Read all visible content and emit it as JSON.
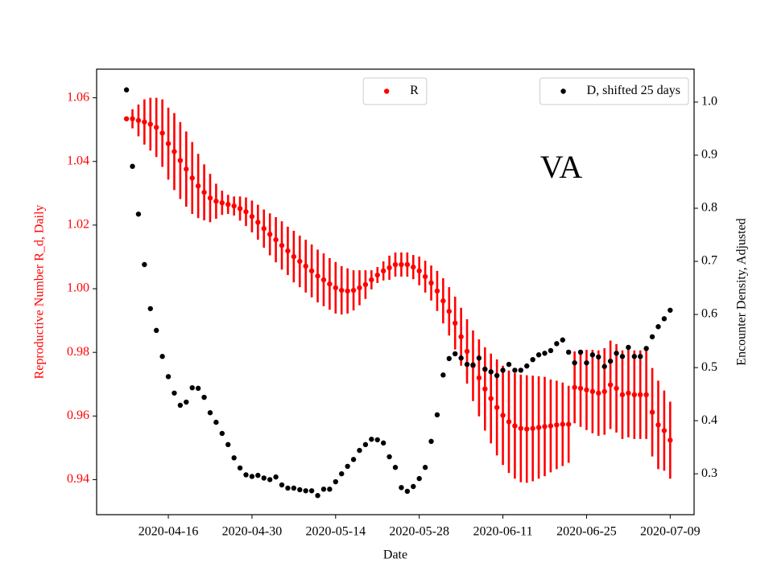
{
  "chart_data": {
    "type": "scatter",
    "annotation": "VA",
    "xlabel": "Date",
    "ylabel": "Reproductive Number R_d, Daily",
    "y2label": "Encounter Density, Adjusted",
    "x": [
      "2020-04-09",
      "2020-04-10",
      "2020-04-11",
      "2020-04-12",
      "2020-04-13",
      "2020-04-14",
      "2020-04-15",
      "2020-04-16",
      "2020-04-17",
      "2020-04-18",
      "2020-04-19",
      "2020-04-20",
      "2020-04-21",
      "2020-04-22",
      "2020-04-23",
      "2020-04-24",
      "2020-04-25",
      "2020-04-26",
      "2020-04-27",
      "2020-04-28",
      "2020-04-29",
      "2020-04-30",
      "2020-05-01",
      "2020-05-02",
      "2020-05-03",
      "2020-05-04",
      "2020-05-05",
      "2020-05-06",
      "2020-05-07",
      "2020-05-08",
      "2020-05-09",
      "2020-05-10",
      "2020-05-11",
      "2020-05-12",
      "2020-05-13",
      "2020-05-14",
      "2020-05-15",
      "2020-05-16",
      "2020-05-17",
      "2020-05-18",
      "2020-05-19",
      "2020-05-20",
      "2020-05-21",
      "2020-05-22",
      "2020-05-23",
      "2020-05-24",
      "2020-05-25",
      "2020-05-26",
      "2020-05-27",
      "2020-05-28",
      "2020-05-29",
      "2020-05-30",
      "2020-05-31",
      "2020-06-01",
      "2020-06-02",
      "2020-06-03",
      "2020-06-04",
      "2020-06-05",
      "2020-06-06",
      "2020-06-07",
      "2020-06-08",
      "2020-06-09",
      "2020-06-10",
      "2020-06-11",
      "2020-06-12",
      "2020-06-13",
      "2020-06-14",
      "2020-06-15",
      "2020-06-16",
      "2020-06-17",
      "2020-06-18",
      "2020-06-19",
      "2020-06-20",
      "2020-06-21",
      "2020-06-22",
      "2020-06-23",
      "2020-06-24",
      "2020-06-25",
      "2020-06-26",
      "2020-06-27",
      "2020-06-28",
      "2020-06-29",
      "2020-06-30",
      "2020-07-01",
      "2020-07-02",
      "2020-07-03",
      "2020-07-04",
      "2020-07-05",
      "2020-07-06",
      "2020-07-07",
      "2020-07-08",
      "2020-07-09"
    ],
    "xlim": [
      "2020-04-04",
      "2020-07-13"
    ],
    "xticks": [
      "2020-04-16",
      "2020-04-30",
      "2020-05-14",
      "2020-05-28",
      "2020-06-11",
      "2020-06-25",
      "2020-07-09"
    ],
    "ylim": [
      0.929,
      1.069
    ],
    "yticks": [
      {
        "value": 0.94,
        "label": "0.94"
      },
      {
        "value": 0.96,
        "label": "0.96"
      },
      {
        "value": 0.98,
        "label": "0.98"
      },
      {
        "value": 1.0,
        "label": "1.00"
      },
      {
        "value": 1.02,
        "label": "1.02"
      },
      {
        "value": 1.04,
        "label": "1.04"
      },
      {
        "value": 1.06,
        "label": "1.06"
      }
    ],
    "y2lim": [
      0.223,
      1.062
    ],
    "y2ticks": [
      {
        "value": 0.3,
        "label": "0.3"
      },
      {
        "value": 0.4,
        "label": "0.4"
      },
      {
        "value": 0.5,
        "label": "0.5"
      },
      {
        "value": 0.6,
        "label": "0.6"
      },
      {
        "value": 0.7,
        "label": "0.7"
      },
      {
        "value": 0.8,
        "label": "0.8"
      },
      {
        "value": 0.9,
        "label": "0.9"
      },
      {
        "value": 1.0,
        "label": "1.0"
      }
    ],
    "series": [
      {
        "name": "R",
        "color": "#ff0000",
        "legend_loc": "upper center",
        "values": [
          1.0534,
          1.0534,
          1.0529,
          1.0524,
          1.0517,
          1.0507,
          1.0489,
          1.0456,
          1.0431,
          1.0403,
          1.0376,
          1.0348,
          1.0323,
          1.0303,
          1.0285,
          1.0275,
          1.027,
          1.0265,
          1.026,
          1.0252,
          1.0242,
          1.0227,
          1.0209,
          1.0189,
          1.0171,
          1.0154,
          1.0136,
          1.0119,
          1.0101,
          1.0086,
          1.0071,
          1.0056,
          1.004,
          1.0028,
          1.0015,
          1.0003,
          0.9995,
          0.9993,
          0.9995,
          1.0003,
          1.0013,
          1.0028,
          1.0043,
          1.0056,
          1.0066,
          1.0076,
          1.0076,
          1.0076,
          1.0068,
          1.0056,
          1.0038,
          1.0018,
          0.9993,
          0.9962,
          0.9929,
          0.9892,
          0.9849,
          0.9803,
          0.9758,
          0.972,
          0.9685,
          0.9655,
          0.9627,
          0.9602,
          0.9582,
          0.9569,
          0.9561,
          0.9559,
          0.9561,
          0.9564,
          0.9567,
          0.9569,
          0.9572,
          0.9574,
          0.9574,
          0.969,
          0.9687,
          0.9682,
          0.9677,
          0.9672,
          0.9677,
          0.9698,
          0.9687,
          0.9667,
          0.9672,
          0.9667,
          0.9667,
          0.9667,
          0.9612,
          0.9572,
          0.9554,
          0.9524
        ],
        "errors": [
          0,
          0.003,
          0.005,
          0.0071,
          0.0083,
          0.0093,
          0.0106,
          0.0113,
          0.0121,
          0.0121,
          0.0118,
          0.0113,
          0.0101,
          0.0088,
          0.0076,
          0.0055,
          0.0038,
          0.003,
          0.003,
          0.0038,
          0.0045,
          0.005,
          0.0055,
          0.006,
          0.0066,
          0.0071,
          0.0076,
          0.0076,
          0.0081,
          0.0081,
          0.0083,
          0.0083,
          0.0083,
          0.0083,
          0.0081,
          0.0081,
          0.0076,
          0.0071,
          0.0063,
          0.0055,
          0.0045,
          0.003,
          0.0025,
          0.003,
          0.0038,
          0.0038,
          0.0038,
          0.0038,
          0.0038,
          0.0045,
          0.005,
          0.0055,
          0.0063,
          0.0071,
          0.0076,
          0.0083,
          0.0091,
          0.0101,
          0.0111,
          0.0121,
          0.0131,
          0.0141,
          0.0151,
          0.0156,
          0.0161,
          0.0166,
          0.0169,
          0.0169,
          0.0166,
          0.0161,
          0.0156,
          0.0146,
          0.0139,
          0.0131,
          0.0121,
          0.0113,
          0.0121,
          0.0126,
          0.0131,
          0.0134,
          0.0136,
          0.0139,
          0.0139,
          0.0139,
          0.0139,
          0.0139,
          0.0139,
          0.0139,
          0.0139,
          0.0139,
          0.0126,
          0.0121
        ]
      },
      {
        "name": "D, shifted 25 days",
        "color": "#000000",
        "axis": "y2",
        "legend_loc": "upper right",
        "values": [
          1.023,
          0.879,
          0.789,
          0.694,
          0.611,
          0.57,
          0.521,
          0.483,
          0.452,
          0.429,
          0.435,
          0.462,
          0.461,
          0.444,
          0.415,
          0.397,
          0.376,
          0.355,
          0.33,
          0.311,
          0.298,
          0.295,
          0.297,
          0.292,
          0.289,
          0.294,
          0.279,
          0.273,
          0.273,
          0.27,
          0.268,
          0.268,
          0.259,
          0.271,
          0.271,
          0.285,
          0.3,
          0.314,
          0.327,
          0.344,
          0.355,
          0.365,
          0.364,
          0.358,
          0.332,
          0.312,
          0.274,
          0.267,
          0.276,
          0.291,
          0.312,
          0.361,
          0.411,
          0.486,
          0.517,
          0.526,
          0.518,
          0.506,
          0.505,
          0.518,
          0.497,
          0.492,
          0.485,
          0.495,
          0.506,
          0.495,
          0.495,
          0.503,
          0.515,
          0.524,
          0.527,
          0.532,
          0.545,
          0.552,
          0.529,
          0.509,
          0.529,
          0.509,
          0.524,
          0.52,
          0.502,
          0.512,
          0.527,
          0.521,
          0.538,
          0.521,
          0.521,
          0.536,
          0.558,
          0.577,
          0.592,
          0.608
        ]
      }
    ]
  }
}
